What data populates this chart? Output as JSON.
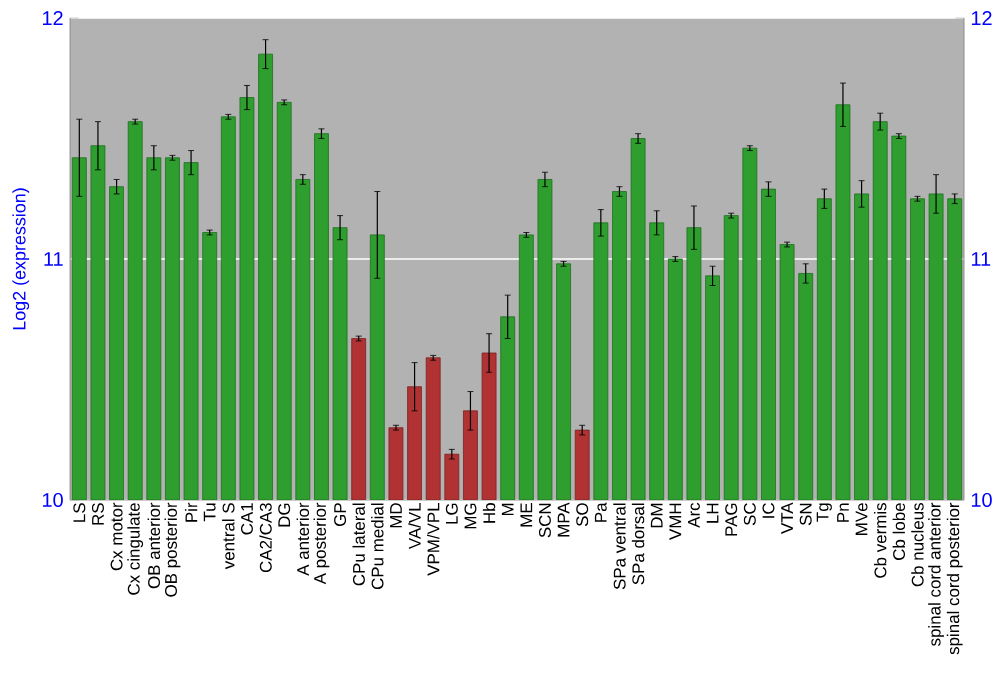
{
  "chart_data": {
    "type": "bar",
    "ylabel": "Log2 (expression)",
    "categories": [
      "LS",
      "RS",
      "Cx motor",
      "Cx cingulate",
      "OB anterior",
      "OB posterior",
      "Pir",
      "Tu",
      "ventral S",
      "CA1",
      "CA2/CA3",
      "DG",
      "A anterior",
      "A posterior",
      "GP",
      "CPu lateral",
      "CPu medial",
      "MD",
      "VA/VL",
      "VPM/VPL",
      "LG",
      "MG",
      "Hb",
      "M",
      "ME",
      "SCN",
      "MPA",
      "SO",
      "Pa",
      "SPa ventral",
      "SPa dorsal",
      "DM",
      "VMH",
      "Arc",
      "LH",
      "PAG",
      "SC",
      "IC",
      "VTA",
      "SN",
      "Tg",
      "Pn",
      "MVe",
      "Cb vermis",
      "Cb lobe",
      "Cb nucleus",
      "spinal cord anterior",
      "spinal cord posterior"
    ],
    "values": [
      11.42,
      11.47,
      11.3,
      11.57,
      11.42,
      11.42,
      11.4,
      11.11,
      11.59,
      11.67,
      11.85,
      11.65,
      11.33,
      11.52,
      11.13,
      10.67,
      11.1,
      10.3,
      10.47,
      10.59,
      10.19,
      10.37,
      10.61,
      10.76,
      11.1,
      11.33,
      10.98,
      10.29,
      11.15,
      11.28,
      11.5,
      11.15,
      11.0,
      11.13,
      10.93,
      11.18,
      11.46,
      11.29,
      11.06,
      10.94,
      11.25,
      11.64,
      11.27,
      11.57,
      11.51,
      11.25,
      11.27,
      11.25
    ],
    "errors": [
      0.16,
      0.1,
      0.03,
      0.01,
      0.05,
      0.01,
      0.05,
      0.01,
      0.01,
      0.05,
      0.06,
      0.01,
      0.02,
      0.02,
      0.05,
      0.01,
      0.18,
      0.01,
      0.1,
      0.01,
      0.02,
      0.08,
      0.08,
      0.09,
      0.01,
      0.03,
      0.01,
      0.02,
      0.055,
      0.02,
      0.02,
      0.05,
      0.01,
      0.09,
      0.04,
      0.01,
      0.01,
      0.03,
      0.01,
      0.04,
      0.04,
      0.09,
      0.055,
      0.035,
      0.01,
      0.01,
      0.08,
      0.02
    ],
    "colors": [
      "#2e9e2e",
      "#2e9e2e",
      "#2e9e2e",
      "#2e9e2e",
      "#2e9e2e",
      "#2e9e2e",
      "#2e9e2e",
      "#2e9e2e",
      "#2e9e2e",
      "#2e9e2e",
      "#2e9e2e",
      "#2e9e2e",
      "#2e9e2e",
      "#2e9e2e",
      "#2e9e2e",
      "#b03232",
      "#2e9e2e",
      "#b03232",
      "#b03232",
      "#b03232",
      "#b03232",
      "#b03232",
      "#b03232",
      "#2e9e2e",
      "#2e9e2e",
      "#2e9e2e",
      "#2e9e2e",
      "#b03232",
      "#2e9e2e",
      "#2e9e2e",
      "#2e9e2e",
      "#2e9e2e",
      "#2e9e2e",
      "#2e9e2e",
      "#2e9e2e",
      "#2e9e2e",
      "#2e9e2e",
      "#2e9e2e",
      "#2e9e2e",
      "#2e9e2e",
      "#2e9e2e",
      "#2e9e2e",
      "#2e9e2e",
      "#2e9e2e",
      "#2e9e2e",
      "#2e9e2e",
      "#2e9e2e",
      "#2e9e2e"
    ],
    "ylim": [
      10,
      12
    ],
    "yticks": [
      10,
      11,
      12
    ],
    "y2lim": [
      10,
      12
    ],
    "y2ticks": [
      10,
      11,
      12
    ],
    "grid": "y"
  }
}
